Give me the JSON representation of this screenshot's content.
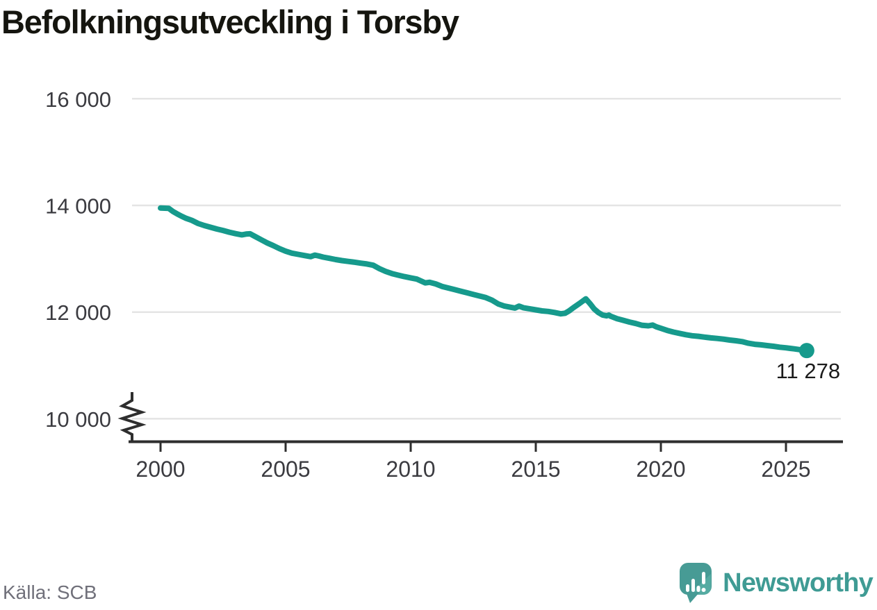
{
  "title": "Befolkningsutveckling i Torsby",
  "source": "Källa: SCB",
  "branding": {
    "logo_text": "Newsworthy",
    "logo_text_color": "#3f9b94",
    "logo_mark_color": "#479b95",
    "logo_mark_light_color": "#55aba2"
  },
  "chart_data": {
    "type": "line",
    "title": "Befolkningsutveckling i Torsby",
    "xlabel": "",
    "ylabel": "",
    "grid": true,
    "axis_break_below": 10000,
    "xlim": [
      1998.7,
      2027.3
    ],
    "ylim": [
      10000,
      16000
    ],
    "x_ticks": [
      2000,
      2005,
      2010,
      2015,
      2020,
      2025
    ],
    "y_ticks": [
      {
        "value": 16000,
        "label": "16 000"
      },
      {
        "value": 14000,
        "label": "14 000"
      },
      {
        "value": 12000,
        "label": "12 000"
      },
      {
        "value": 10000,
        "label": "10 000"
      }
    ],
    "end_label": "11 278",
    "end_value": 11278,
    "line_color": "#169a8c",
    "gridline_color": "#e4e4e4",
    "axis_color": "#2e2e2e",
    "tick_label_color": "#3b3b40",
    "series": [
      {
        "name": "Befolkning",
        "points": [
          [
            2000.0,
            13950
          ],
          [
            2000.17,
            13948
          ],
          [
            2000.33,
            13944
          ],
          [
            2000.5,
            13885
          ],
          [
            2000.67,
            13840
          ],
          [
            2000.83,
            13800
          ],
          [
            2001.0,
            13762
          ],
          [
            2001.25,
            13720
          ],
          [
            2001.5,
            13662
          ],
          [
            2001.75,
            13622
          ],
          [
            2002.0,
            13590
          ],
          [
            2002.25,
            13558
          ],
          [
            2002.5,
            13530
          ],
          [
            2002.75,
            13498
          ],
          [
            2003.0,
            13470
          ],
          [
            2003.25,
            13448
          ],
          [
            2003.42,
            13462
          ],
          [
            2003.58,
            13468
          ],
          [
            2003.75,
            13425
          ],
          [
            2004.0,
            13362
          ],
          [
            2004.25,
            13300
          ],
          [
            2004.5,
            13248
          ],
          [
            2004.75,
            13190
          ],
          [
            2005.0,
            13142
          ],
          [
            2005.25,
            13105
          ],
          [
            2005.5,
            13082
          ],
          [
            2005.75,
            13060
          ],
          [
            2006.0,
            13040
          ],
          [
            2006.17,
            13068
          ],
          [
            2006.33,
            13052
          ],
          [
            2006.5,
            13030
          ],
          [
            2006.75,
            13008
          ],
          [
            2007.0,
            12985
          ],
          [
            2007.25,
            12965
          ],
          [
            2007.5,
            12950
          ],
          [
            2007.75,
            12935
          ],
          [
            2008.0,
            12918
          ],
          [
            2008.25,
            12902
          ],
          [
            2008.5,
            12878
          ],
          [
            2008.75,
            12815
          ],
          [
            2009.0,
            12762
          ],
          [
            2009.25,
            12722
          ],
          [
            2009.5,
            12692
          ],
          [
            2009.75,
            12665
          ],
          [
            2010.0,
            12642
          ],
          [
            2010.25,
            12618
          ],
          [
            2010.42,
            12582
          ],
          [
            2010.58,
            12548
          ],
          [
            2010.75,
            12558
          ],
          [
            2011.0,
            12528
          ],
          [
            2011.25,
            12482
          ],
          [
            2011.5,
            12452
          ],
          [
            2011.75,
            12422
          ],
          [
            2012.0,
            12392
          ],
          [
            2012.25,
            12362
          ],
          [
            2012.5,
            12332
          ],
          [
            2012.75,
            12302
          ],
          [
            2013.0,
            12272
          ],
          [
            2013.25,
            12222
          ],
          [
            2013.5,
            12152
          ],
          [
            2013.75,
            12112
          ],
          [
            2014.0,
            12090
          ],
          [
            2014.17,
            12075
          ],
          [
            2014.33,
            12112
          ],
          [
            2014.5,
            12082
          ],
          [
            2014.75,
            12062
          ],
          [
            2015.0,
            12042
          ],
          [
            2015.25,
            12022
          ],
          [
            2015.5,
            12012
          ],
          [
            2015.75,
            11992
          ],
          [
            2016.0,
            11968
          ],
          [
            2016.17,
            11978
          ],
          [
            2016.33,
            12022
          ],
          [
            2016.5,
            12082
          ],
          [
            2016.75,
            12162
          ],
          [
            2017.0,
            12248
          ],
          [
            2017.17,
            12158
          ],
          [
            2017.33,
            12060
          ],
          [
            2017.5,
            11992
          ],
          [
            2017.67,
            11945
          ],
          [
            2017.83,
            11930
          ],
          [
            2017.92,
            11944
          ],
          [
            2018.0,
            11920
          ],
          [
            2018.25,
            11876
          ],
          [
            2018.5,
            11845
          ],
          [
            2018.75,
            11812
          ],
          [
            2019.0,
            11785
          ],
          [
            2019.25,
            11752
          ],
          [
            2019.5,
            11742
          ],
          [
            2019.67,
            11756
          ],
          [
            2019.83,
            11722
          ],
          [
            2020.0,
            11695
          ],
          [
            2020.25,
            11656
          ],
          [
            2020.5,
            11625
          ],
          [
            2020.75,
            11600
          ],
          [
            2021.0,
            11576
          ],
          [
            2021.25,
            11556
          ],
          [
            2021.5,
            11546
          ],
          [
            2021.75,
            11530
          ],
          [
            2022.0,
            11516
          ],
          [
            2022.25,
            11505
          ],
          [
            2022.5,
            11492
          ],
          [
            2022.75,
            11476
          ],
          [
            2023.0,
            11462
          ],
          [
            2023.25,
            11446
          ],
          [
            2023.5,
            11416
          ],
          [
            2023.75,
            11396
          ],
          [
            2024.0,
            11386
          ],
          [
            2024.25,
            11372
          ],
          [
            2024.5,
            11358
          ],
          [
            2024.75,
            11342
          ],
          [
            2025.0,
            11330
          ],
          [
            2025.17,
            11320
          ],
          [
            2025.33,
            11310
          ],
          [
            2025.5,
            11298
          ],
          [
            2025.67,
            11286
          ],
          [
            2025.83,
            11278
          ]
        ]
      }
    ]
  }
}
